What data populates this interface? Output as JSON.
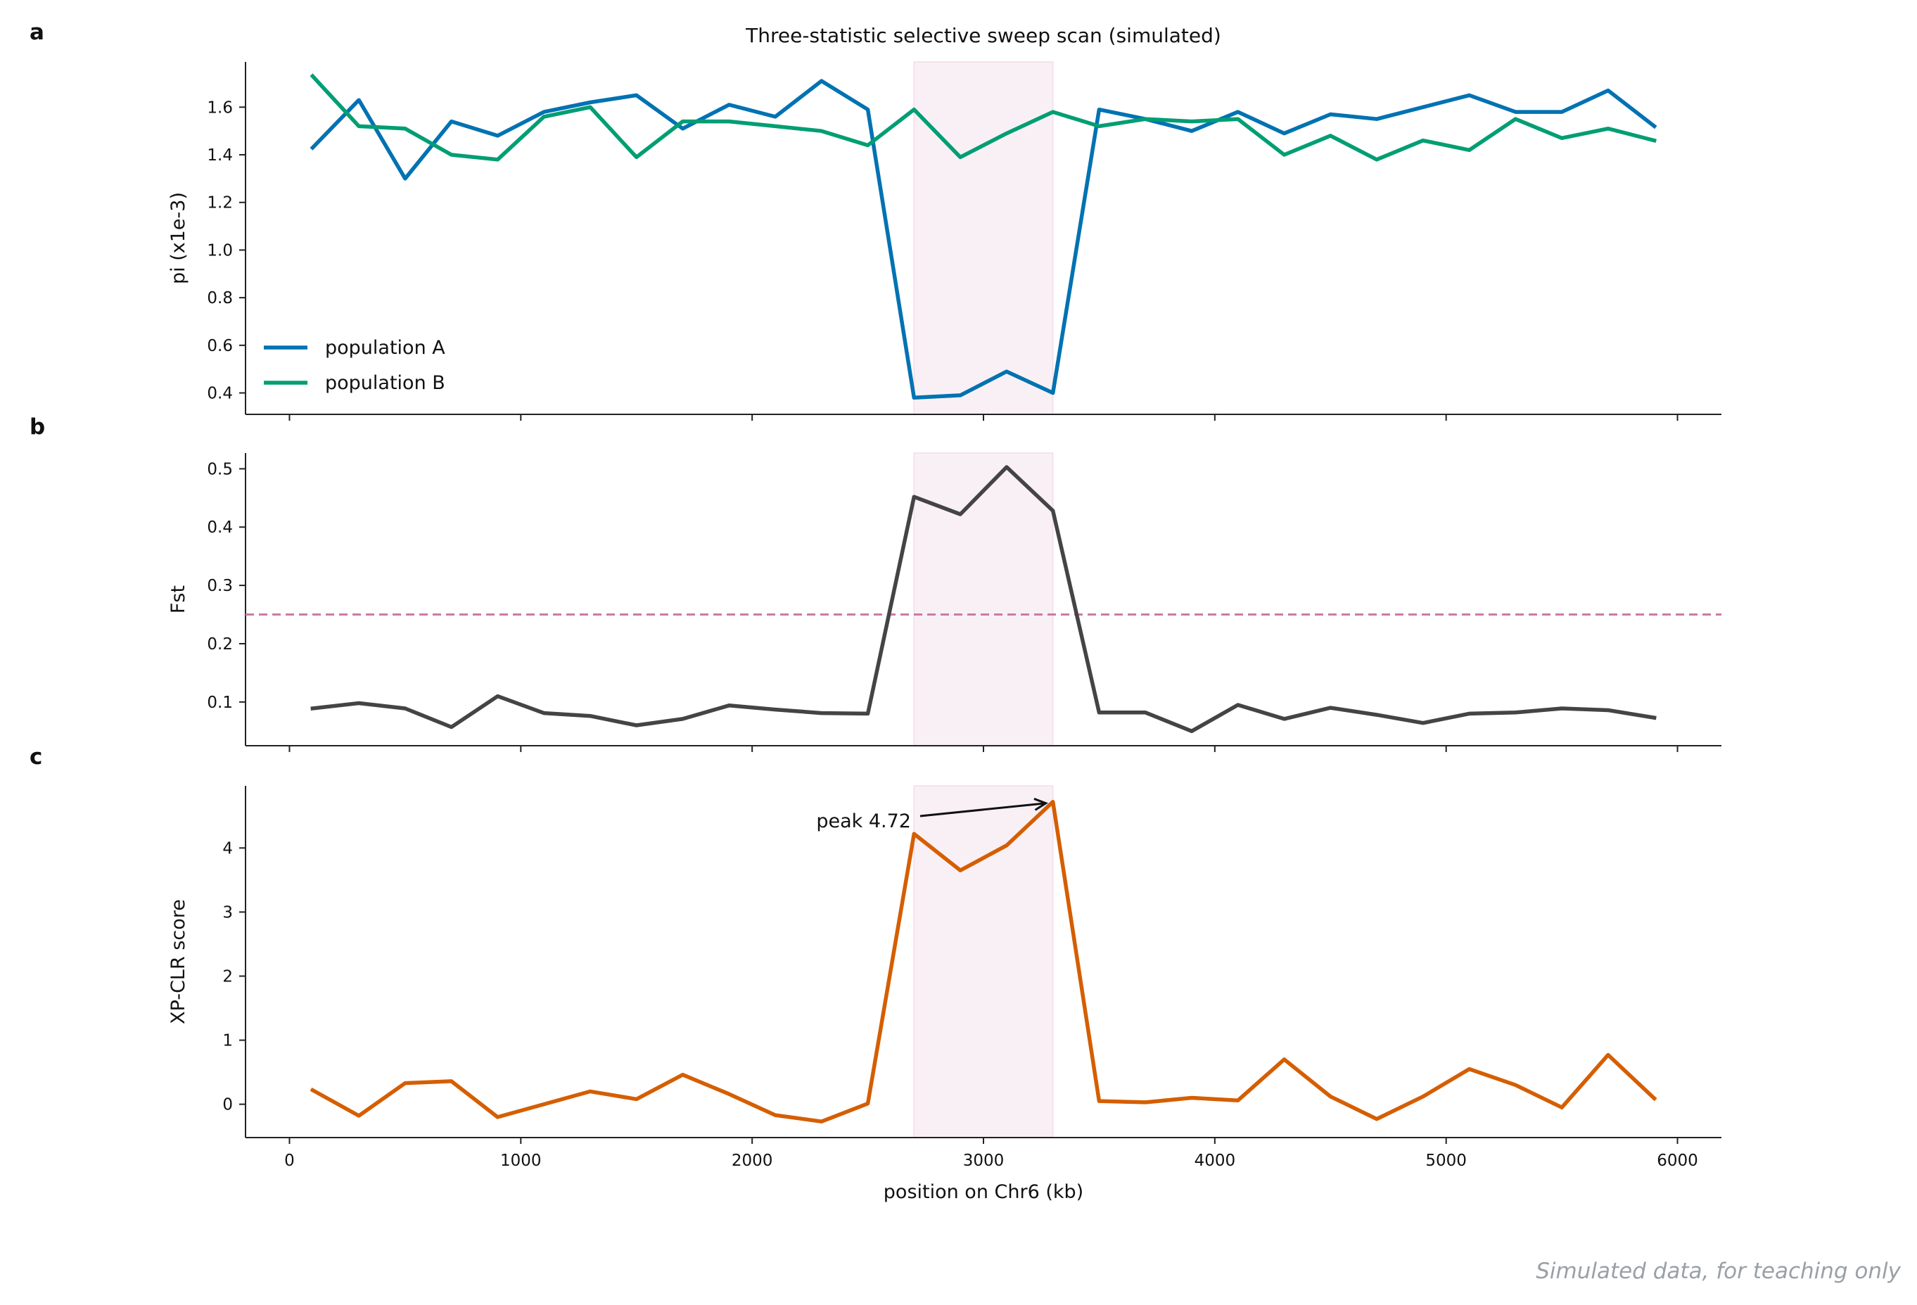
{
  "figure": {
    "title": "Three-statistic selective sweep scan (simulated)",
    "watermark": "Simulated data, for teaching only",
    "xlabel": "position on Chr6 (kb)",
    "xlim": [
      -190,
      6190
    ],
    "xticks": [
      0,
      1000,
      2000,
      3000,
      4000,
      5000,
      6000
    ],
    "sweep_region": [
      2700,
      3300
    ],
    "colors": {
      "population_a": "#0072b2",
      "population_b": "#009e73",
      "fst": "#444444",
      "xpclr": "#d55e00",
      "threshold": "#cc79a7",
      "sweep_shade": "#f9f0f6",
      "watermark": "#9aa0a6"
    }
  },
  "chart_data": [
    {
      "panel_label": "a",
      "type": "line",
      "ylabel": "pi (x1e-3)",
      "ylim": [
        0.31,
        1.79
      ],
      "yticks": [
        0.4,
        0.6,
        0.8,
        1.0,
        1.2,
        1.4,
        1.6
      ],
      "legend_position": "lower-left",
      "x": [
        100,
        300,
        500,
        700,
        900,
        1100,
        1300,
        1500,
        1700,
        1900,
        2100,
        2300,
        2500,
        2700,
        2900,
        3100,
        3300,
        3500,
        3700,
        3900,
        4100,
        4300,
        4500,
        4700,
        4900,
        5100,
        5300,
        5500,
        5700,
        5900
      ],
      "series": [
        {
          "name": "population A",
          "color_key": "population_a",
          "values": [
            1.43,
            1.63,
            1.3,
            1.54,
            1.48,
            1.58,
            1.62,
            1.65,
            1.51,
            1.61,
            1.56,
            1.71,
            1.59,
            0.38,
            0.39,
            0.49,
            0.4,
            1.59,
            1.55,
            1.5,
            1.58,
            1.49,
            1.57,
            1.55,
            1.6,
            1.65,
            1.58,
            1.58,
            1.67,
            1.52
          ]
        },
        {
          "name": "population B",
          "color_key": "population_b",
          "values": [
            1.73,
            1.52,
            1.51,
            1.4,
            1.38,
            1.56,
            1.6,
            1.39,
            1.54,
            1.54,
            1.52,
            1.5,
            1.44,
            1.59,
            1.39,
            1.49,
            1.58,
            1.52,
            1.55,
            1.54,
            1.55,
            1.4,
            1.48,
            1.38,
            1.46,
            1.42,
            1.55,
            1.47,
            1.51,
            1.46
          ]
        }
      ]
    },
    {
      "panel_label": "b",
      "type": "line",
      "ylabel": "Fst",
      "ylim": [
        0.025,
        0.527
      ],
      "yticks": [
        0.1,
        0.2,
        0.3,
        0.4,
        0.5
      ],
      "threshold": 0.25,
      "x": [
        100,
        300,
        500,
        700,
        900,
        1100,
        1300,
        1500,
        1700,
        1900,
        2100,
        2300,
        2500,
        2700,
        2900,
        3100,
        3300,
        3500,
        3700,
        3900,
        4100,
        4300,
        4500,
        4700,
        4900,
        5100,
        5300,
        5500,
        5700,
        5900
      ],
      "series": [
        {
          "color_key": "fst",
          "values": [
            0.089,
            0.098,
            0.089,
            0.057,
            0.11,
            0.081,
            0.076,
            0.06,
            0.071,
            0.094,
            0.087,
            0.081,
            0.08,
            0.452,
            0.422,
            0.503,
            0.428,
            0.082,
            0.082,
            0.05,
            0.095,
            0.071,
            0.09,
            0.078,
            0.064,
            0.08,
            0.082,
            0.089,
            0.086,
            0.073
          ]
        }
      ]
    },
    {
      "panel_label": "c",
      "type": "line",
      "ylabel": "XP-CLR score",
      "ylim": [
        -0.52,
        4.97
      ],
      "yticks": [
        0,
        1,
        2,
        3,
        4
      ],
      "annotation": {
        "text": "peak 4.72",
        "x": 3300,
        "y": 4.72
      },
      "x": [
        100,
        300,
        500,
        700,
        900,
        1100,
        1300,
        1500,
        1700,
        1900,
        2100,
        2300,
        2500,
        2700,
        2900,
        3100,
        3300,
        3500,
        3700,
        3900,
        4100,
        4300,
        4500,
        4700,
        4900,
        5100,
        5300,
        5500,
        5700,
        5900
      ],
      "series": [
        {
          "color_key": "xpclr",
          "values": [
            0.22,
            -0.18,
            0.33,
            0.36,
            -0.2,
            0.0,
            0.2,
            0.08,
            0.46,
            0.16,
            -0.17,
            -0.27,
            0.01,
            4.22,
            3.65,
            4.04,
            4.72,
            0.05,
            0.03,
            0.1,
            0.06,
            0.7,
            0.12,
            -0.23,
            0.12,
            0.55,
            0.3,
            -0.05,
            0.77,
            0.09
          ]
        }
      ]
    }
  ]
}
